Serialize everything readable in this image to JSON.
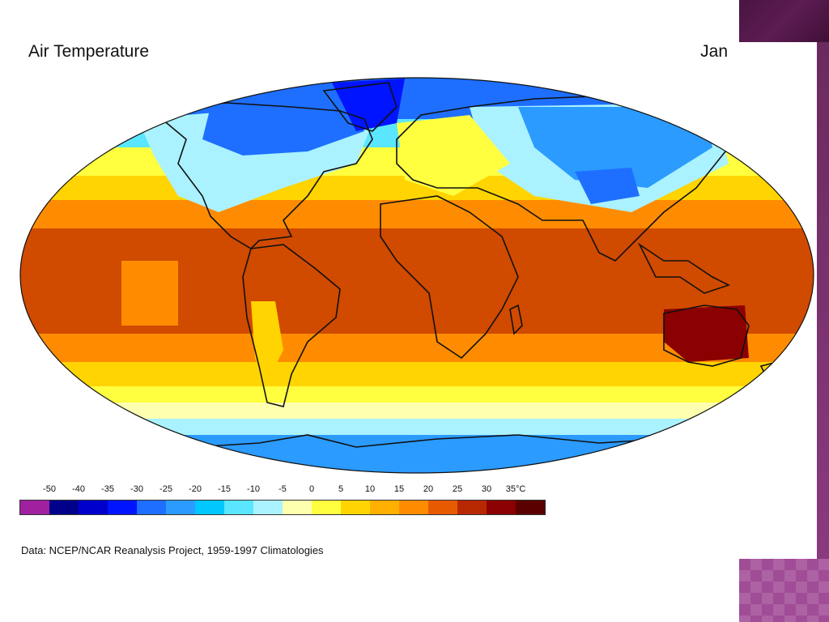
{
  "slide": {
    "title": "Air Temperature",
    "month": "Jan",
    "source": "Data:  NCEP/NCAR Reanalysis Project, 1959-1997 Climatologies"
  },
  "legend": {
    "labels": [
      "-50",
      "-40",
      "-35",
      "-30",
      "-25",
      "-20",
      "-15",
      "-10",
      "-5",
      "0",
      "5",
      "10",
      "15",
      "20",
      "25",
      "30",
      "35°C"
    ],
    "colors": [
      "#a020a0",
      "#00008b",
      "#0000cd",
      "#0014ff",
      "#1e6fff",
      "#2b9bff",
      "#00c8ff",
      "#5ae6ff",
      "#aaf2ff",
      "#ffffb0",
      "#ffff40",
      "#ffd400",
      "#ffb000",
      "#ff8c00",
      "#e85a00",
      "#b82800",
      "#8b0000",
      "#5a0000"
    ]
  },
  "map_bands": {
    "description": "January mean near-surface air temperature on a Robinson-like projection",
    "palette": {
      "polar_deep": "#1e6fff",
      "polar_mid": "#2b9bff",
      "cold": "#5ae6ff",
      "cool": "#aaf2ff",
      "mild": "#ffffb0",
      "temperate": "#ffff40",
      "warm": "#ffd400",
      "hot": "#ff8c00",
      "very_hot": "#e85a00",
      "tropical": "#d04a00",
      "extreme": "#8b0000"
    }
  }
}
